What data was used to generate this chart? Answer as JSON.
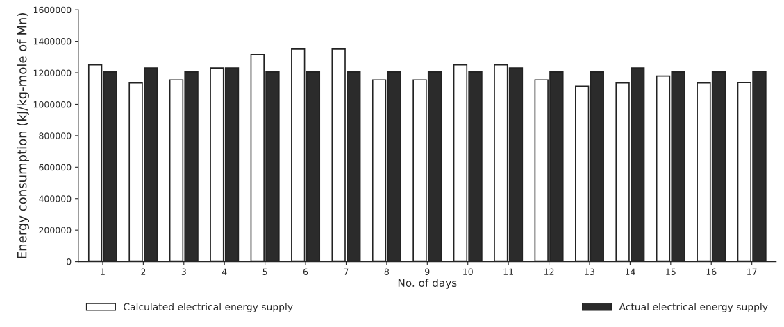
{
  "chart_data": {
    "type": "bar",
    "xlabel": "No. of days",
    "ylabel": "Energy consumption (kJ/kg-mole of Mn)",
    "categories": [
      "1",
      "2",
      "3",
      "4",
      "5",
      "6",
      "7",
      "8",
      "9",
      "10",
      "11",
      "12",
      "13",
      "14",
      "15",
      "16",
      "17"
    ],
    "series": [
      {
        "name": "Calculated electrical energy supply",
        "color": "#ffffff",
        "values": [
          1250000,
          1135000,
          1155000,
          1230000,
          1315000,
          1350000,
          1350000,
          1155000,
          1155000,
          1250000,
          1250000,
          1155000,
          1115000,
          1135000,
          1180000,
          1135000,
          1138000
        ]
      },
      {
        "name": "Actual electrical energy supply",
        "color": "#2b2b2b",
        "values": [
          1205000,
          1230000,
          1205000,
          1230000,
          1205000,
          1205000,
          1205000,
          1205000,
          1205000,
          1205000,
          1230000,
          1205000,
          1205000,
          1230000,
          1205000,
          1205000,
          1209000
        ]
      }
    ],
    "ylim": [
      0,
      1600000
    ],
    "yticks": [
      0,
      200000,
      400000,
      600000,
      800000,
      1000000,
      1200000,
      1400000,
      1600000
    ],
    "grid": false,
    "legend": "bottom"
  }
}
